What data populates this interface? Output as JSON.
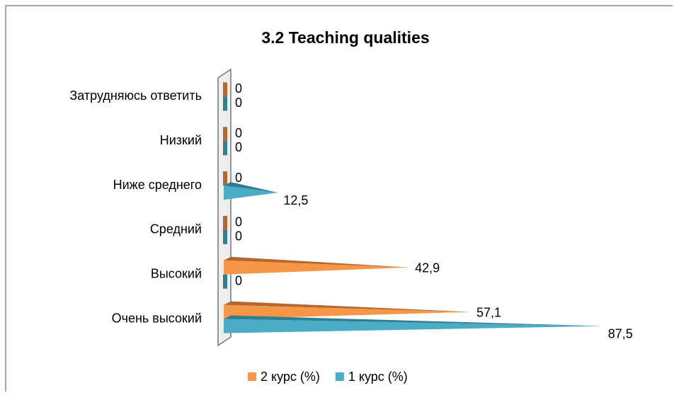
{
  "chart_data": {
    "type": "bar",
    "orientation": "horizontal",
    "title": "3.2 Teaching qualities",
    "categories": [
      "Очень высокий",
      "Высокий",
      "Средний",
      "Ниже среднего",
      "Низкий",
      "Затрудняюсь ответить"
    ],
    "series": [
      {
        "name": "2 курс (%)",
        "color": "#f79646",
        "values": [
          57.1,
          42.9,
          0,
          0,
          0,
          0
        ],
        "value_labels": [
          "57,1",
          "42,9",
          "0",
          "0",
          "0",
          "0"
        ]
      },
      {
        "name": "1 курс (%)",
        "color": "#4bacc6",
        "values": [
          87.5,
          0,
          0,
          12.5,
          0,
          0
        ],
        "value_labels": [
          "87,5",
          "0",
          "0",
          "12,5",
          "0",
          "0"
        ]
      }
    ],
    "xlim": [
      0,
      90
    ],
    "legend": "bottom"
  }
}
